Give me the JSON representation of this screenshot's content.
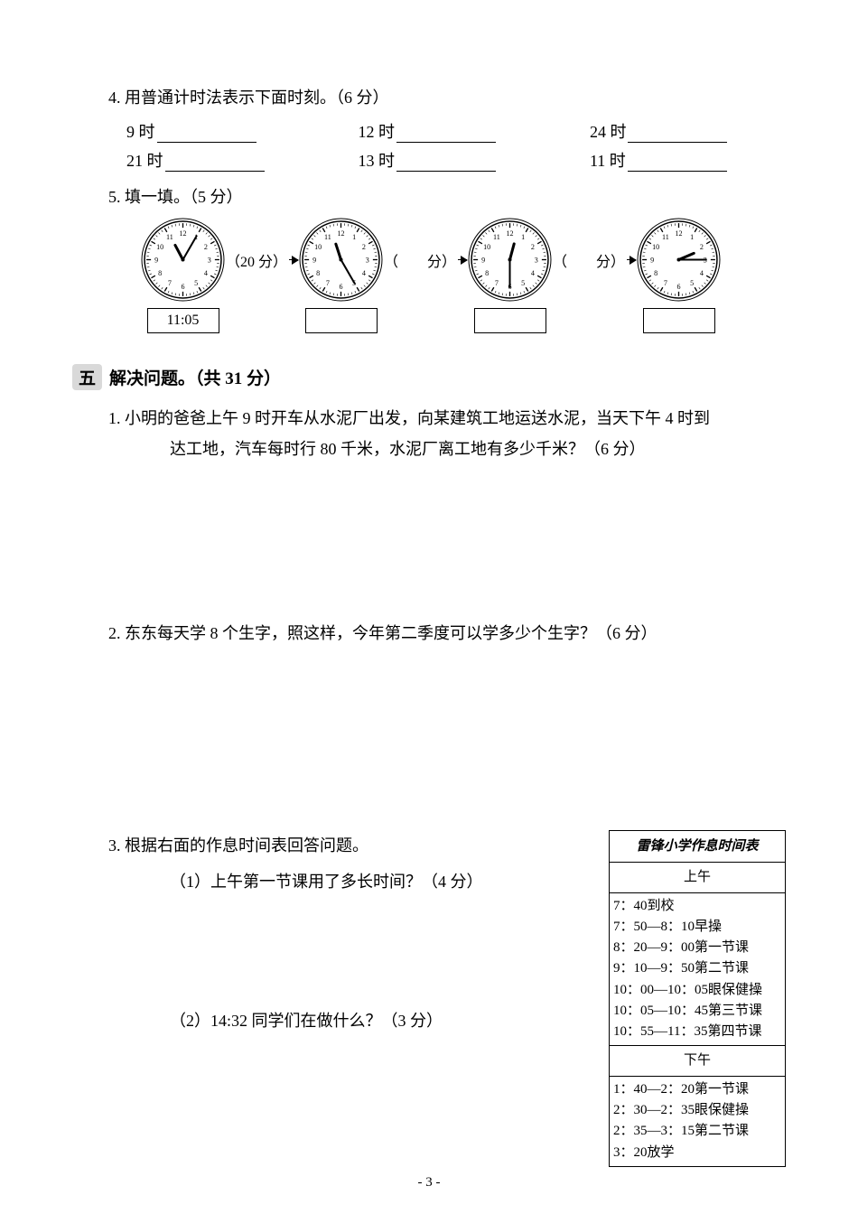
{
  "q4": {
    "title": "4. 用普通计时法表示下面时刻。（6 分）",
    "row1": [
      "9 时",
      "12 时",
      "24 时"
    ],
    "row2": [
      "21 时",
      "13 时",
      "11 时"
    ]
  },
  "q5": {
    "title": "5. 填一填。（5 分）",
    "clocks": [
      {
        "hour_angle": 332,
        "minute_angle": 30,
        "label": "11:05"
      },
      {
        "hour_angle": 342,
        "minute_angle": 150,
        "label": ""
      },
      {
        "hour_angle": 15,
        "minute_angle": 180,
        "label": ""
      },
      {
        "hour_angle": 67,
        "minute_angle": 90,
        "label": ""
      }
    ],
    "arrows": [
      "（20 分）",
      "（　　分）",
      "（　　分）"
    ]
  },
  "section5": {
    "badge": "五",
    "title": "解决问题。（共 31 分）"
  },
  "p1": {
    "line1": "1. 小明的爸爸上午 9 时开车从水泥厂出发，向某建筑工地运送水泥，当天下午 4 时到",
    "line2": "达工地，汽车每时行 80 千米，水泥厂离工地有多少千米？（6 分）"
  },
  "p2": {
    "line1": "2. 东东每天学 8 个生字，照这样，今年第二季度可以学多少个生字？（6 分）"
  },
  "p3": {
    "line1": "3. 根据右面的作息时间表回答问题。",
    "sub1": "（1）上午第一节课用了多长时间？（4 分）",
    "sub2": "（2）14:32 同学们在做什么？（3 分）"
  },
  "schedule": {
    "title": "雷锋小学作息时间表",
    "morning_title": "上午",
    "morning": [
      "7：40到校",
      "7：50—8：10早操",
      "8：20—9：00第一节课",
      "9：10—9：50第二节课",
      "10：00—10：05眼保健操",
      "10：05—10：45第三节课",
      "10：55—11：35第四节课"
    ],
    "afternoon_title": "下午",
    "afternoon": [
      "1：40—2：20第一节课",
      "2：30—2：35眼保健操",
      "2：35—3：15第二节课",
      "3：20放学"
    ]
  },
  "page_num": "- 3 -",
  "style": {
    "font_body_pt": 18,
    "font_table_pt": 15,
    "color_text": "#000000",
    "color_bg": "#ffffff",
    "color_badge_bg": "#d9d9d9",
    "clock_tick_color": "#000000",
    "clock_radius": 42,
    "clock_stroke": 2
  }
}
